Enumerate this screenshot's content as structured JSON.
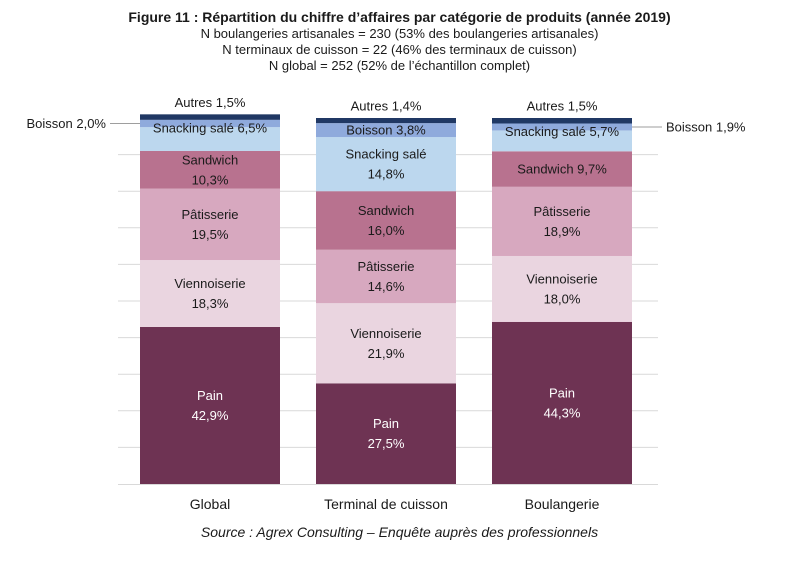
{
  "title": "Figure 11 : Répartition du chiffre d’affaires par catégorie de produits (année 2019)",
  "subtitles": [
    "N boulangeries artisanales = 230 (53% des boulangeries artisanales)",
    "N terminaux de cuisson = 22 (46% des terminaux de cuisson)",
    "N global = 252 (52% de l’échantillon complet)"
  ],
  "source": "Source : Agrex Consulting – Enquête auprès des professionnels",
  "chart_data": {
    "type": "bar",
    "stacked": true,
    "orientation": "vertical",
    "categories": [
      "Global",
      "Terminal de cuisson",
      "Boulangerie"
    ],
    "ylim": [
      0,
      100
    ],
    "grid": true,
    "series": [
      {
        "name": "Pain",
        "color": "#6e3353",
        "text_color": "#ffffff",
        "values": [
          42.9,
          27.5,
          44.3
        ],
        "labels": [
          "42,9%",
          "27,5%",
          "44,3%"
        ]
      },
      {
        "name": "Viennoiserie",
        "color": "#ead5e0",
        "text_color": "#1a1a1a",
        "values": [
          18.3,
          21.9,
          18.0
        ],
        "labels": [
          "18,3%",
          "21,9%",
          "18,0%"
        ]
      },
      {
        "name": "Pâtisserie",
        "color": "#d7a8bf",
        "text_color": "#1a1a1a",
        "values": [
          19.5,
          14.6,
          18.9
        ],
        "labels": [
          "19,5%",
          "14,6%",
          "18,9%"
        ]
      },
      {
        "name": "Sandwich",
        "color": "#b8728f",
        "text_color": "#1a1a1a",
        "values": [
          10.3,
          16.0,
          9.7
        ],
        "labels": [
          "10,3%",
          "16,0%",
          "9,7%"
        ]
      },
      {
        "name": "Snacking salé",
        "color": "#bcd7ee",
        "text_color": "#1a1a1a",
        "values": [
          6.5,
          14.8,
          5.7
        ],
        "labels": [
          "6,5%",
          "14,8%",
          "5,7%"
        ]
      },
      {
        "name": "Boisson",
        "color": "#8faadc",
        "text_color": "#1a1a1a",
        "values": [
          2.0,
          3.8,
          1.9
        ],
        "labels": [
          "2,0%",
          "3,8%",
          "1,9%"
        ]
      },
      {
        "name": "Autres",
        "color": "#203864",
        "text_color": "#1a1a1a",
        "values": [
          1.5,
          1.4,
          1.5
        ],
        "labels": [
          "1,5%",
          "1,4%",
          "1,5%"
        ]
      }
    ]
  }
}
